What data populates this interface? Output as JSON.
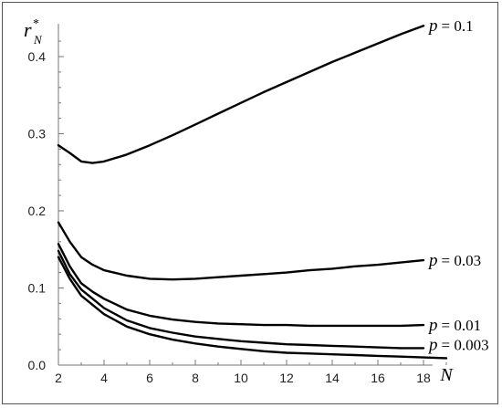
{
  "chart_data": {
    "type": "line",
    "y_axis_label": {
      "main": "r",
      "superscript": "*",
      "subscript": "N"
    },
    "x_axis_label": "N",
    "xlim": [
      2,
      19
    ],
    "ylim": [
      0,
      0.45
    ],
    "x_ticks": [
      2,
      4,
      6,
      8,
      10,
      12,
      14,
      16,
      18
    ],
    "x_tick_labels": [
      "2",
      "4",
      "6",
      "8",
      "10",
      "12",
      "14",
      "16",
      "18"
    ],
    "y_ticks": [
      0.0,
      0.1,
      0.2,
      0.3,
      0.4
    ],
    "y_tick_labels": [
      "0.0",
      "0.1",
      "0.2",
      "0.3",
      "0.4"
    ],
    "grid": false,
    "series": [
      {
        "name": "p = 0.1",
        "label_var": "p",
        "label_value": "= 0.1",
        "x": [
          2,
          2.5,
          3,
          3.5,
          4,
          5,
          6,
          7,
          8,
          9,
          10,
          11,
          12,
          13,
          14,
          15,
          16,
          17,
          18
        ],
        "values": [
          0.285,
          0.275,
          0.264,
          0.262,
          0.264,
          0.273,
          0.285,
          0.298,
          0.312,
          0.326,
          0.34,
          0.354,
          0.367,
          0.38,
          0.393,
          0.405,
          0.417,
          0.429,
          0.44
        ]
      },
      {
        "name": "p = 0.03",
        "label_var": "p",
        "label_value": "= 0.03",
        "x": [
          2,
          2.5,
          3,
          3.5,
          4,
          5,
          6,
          7,
          8,
          9,
          10,
          11,
          12,
          13,
          14,
          15,
          16,
          17,
          18
        ],
        "values": [
          0.185,
          0.16,
          0.14,
          0.13,
          0.123,
          0.116,
          0.112,
          0.111,
          0.112,
          0.114,
          0.116,
          0.118,
          0.12,
          0.123,
          0.125,
          0.128,
          0.13,
          0.133,
          0.136
        ]
      },
      {
        "name": "p = 0.01",
        "label_var": "p",
        "label_value": "= 0.01",
        "x": [
          2,
          2.5,
          3,
          3.5,
          4,
          5,
          6,
          7,
          8,
          9,
          10,
          11,
          12,
          13,
          14,
          15,
          16,
          17,
          18
        ],
        "values": [
          0.157,
          0.128,
          0.106,
          0.095,
          0.086,
          0.072,
          0.064,
          0.059,
          0.056,
          0.054,
          0.053,
          0.052,
          0.052,
          0.051,
          0.051,
          0.051,
          0.051,
          0.051,
          0.052
        ]
      },
      {
        "name": "p = 0.003",
        "label_var": "p",
        "label_value": "= 0.003",
        "x": [
          2,
          2.5,
          3,
          3.5,
          4,
          5,
          6,
          7,
          8,
          9,
          10,
          11,
          12,
          13,
          14,
          15,
          16,
          17,
          18
        ],
        "values": [
          0.148,
          0.118,
          0.098,
          0.086,
          0.074,
          0.058,
          0.048,
          0.042,
          0.037,
          0.034,
          0.031,
          0.029,
          0.027,
          0.026,
          0.025,
          0.024,
          0.023,
          0.022,
          0.022
        ]
      },
      {
        "name": "",
        "label_var": "",
        "label_value": "",
        "x": [
          2,
          2.5,
          3,
          3.5,
          4,
          5,
          6,
          7,
          8,
          9,
          10,
          11,
          12,
          13,
          14,
          15,
          16,
          17,
          18,
          19
        ],
        "values": [
          0.14,
          0.112,
          0.09,
          0.078,
          0.066,
          0.05,
          0.04,
          0.033,
          0.028,
          0.024,
          0.021,
          0.018,
          0.016,
          0.015,
          0.014,
          0.013,
          0.012,
          0.011,
          0.01,
          0.009
        ]
      }
    ]
  }
}
